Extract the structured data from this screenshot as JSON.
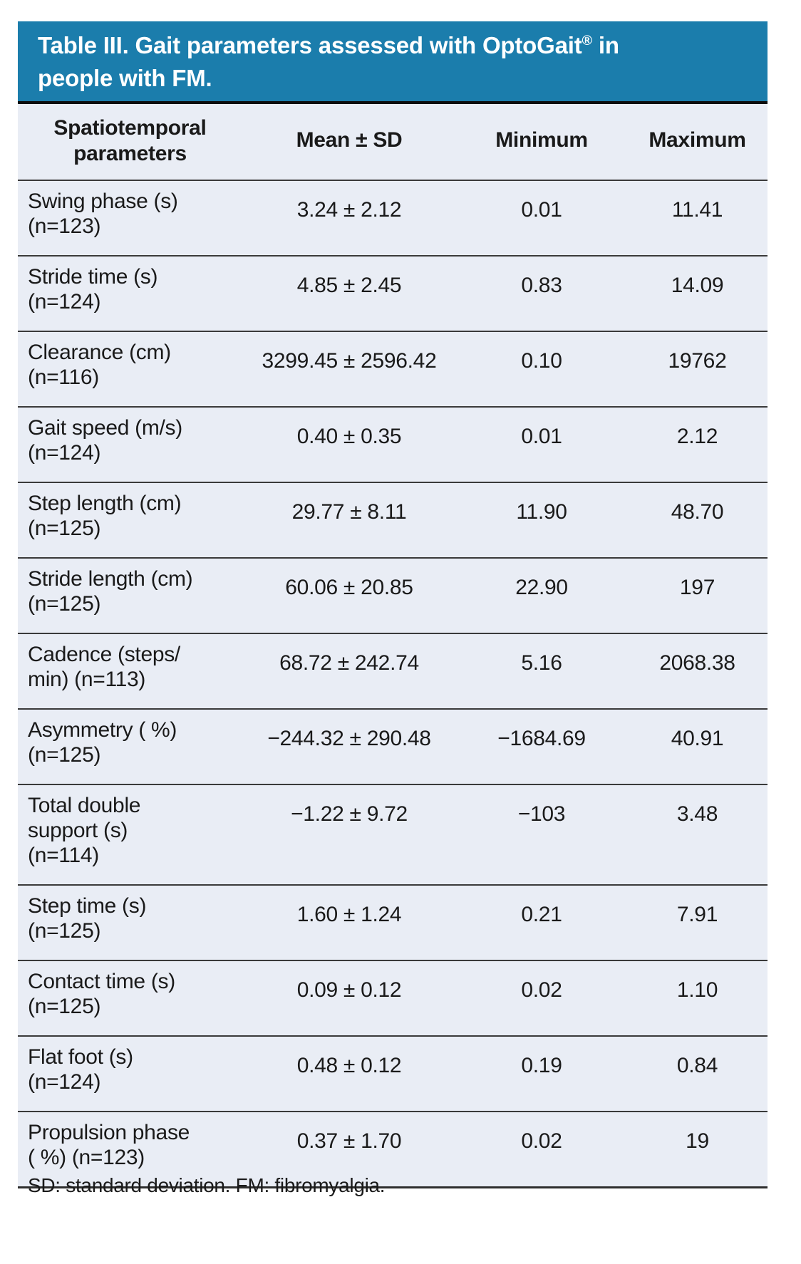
{
  "table": {
    "title": {
      "line1_prefix": "Table III. Gait parameters assessed with OptoGait",
      "line1_mark": "®",
      "line1_suffix": " in",
      "line2": "people with FM."
    },
    "columns": [
      "Spatiotemporal\nparameters",
      "Mean ± SD",
      "Minimum",
      "Maximum"
    ],
    "rows": [
      {
        "parameter": "Swing phase (s)\n(n=123)",
        "mean_sd": "3.24 ± 2.12",
        "minimum": "0.01",
        "maximum": "11.41"
      },
      {
        "parameter": "Stride time (s)\n(n=124)",
        "mean_sd": "4.85 ± 2.45",
        "minimum": "0.83",
        "maximum": "14.09"
      },
      {
        "parameter": "Clearance (cm)\n(n=116)",
        "mean_sd": "3299.45 ± 2596.42",
        "minimum": "0.10",
        "maximum": "19762"
      },
      {
        "parameter": "Gait speed (m/s)\n(n=124)",
        "mean_sd": "0.40 ± 0.35",
        "minimum": "0.01",
        "maximum": "2.12"
      },
      {
        "parameter": "Step length (cm)\n(n=125)",
        "mean_sd": "29.77 ± 8.11",
        "minimum": "11.90",
        "maximum": "48.70"
      },
      {
        "parameter": "Stride length (cm)\n(n=125)",
        "mean_sd": "60.06 ± 20.85",
        "minimum": "22.90",
        "maximum": "197"
      },
      {
        "parameter": "Cadence (steps/\nmin) (n=113)",
        "mean_sd": "68.72 ± 242.74",
        "minimum": "5.16",
        "maximum": "2068.38"
      },
      {
        "parameter": "Asymmetry ( %)\n(n=125)",
        "mean_sd": "−244.32 ± 290.48",
        "minimum": "−1684.69",
        "maximum": "40.91"
      },
      {
        "parameter": "Total double\nsupport (s)\n(n=114)",
        "mean_sd": "−1.22 ± 9.72",
        "minimum": "−103",
        "maximum": "3.48"
      },
      {
        "parameter": "Step time (s)\n(n=125)",
        "mean_sd": "1.60 ± 1.24",
        "minimum": "0.21",
        "maximum": "7.91"
      },
      {
        "parameter": "Contact time (s)\n(n=125)",
        "mean_sd": "0.09 ± 0.12",
        "minimum": "0.02",
        "maximum": "1.10"
      },
      {
        "parameter": "Flat foot (s)\n(n=124)",
        "mean_sd": "0.48 ± 0.12",
        "minimum": "0.19",
        "maximum": "0.84"
      },
      {
        "parameter": "Propulsion phase\n( %) (n=123)",
        "mean_sd": "0.37 ± 1.70",
        "minimum": "0.02",
        "maximum": "19"
      }
    ],
    "footnote": "SD: standard deviation. FM: fibromyalgia.",
    "colors": {
      "header_bg": "#1b7dac",
      "header_text": "#ffffff",
      "body_bg": "#e9edf5",
      "text": "#1a1a1a",
      "divider": "#3a3a3a",
      "top_rule": "#0d0d0d",
      "page_bg": "#ffffff"
    }
  }
}
